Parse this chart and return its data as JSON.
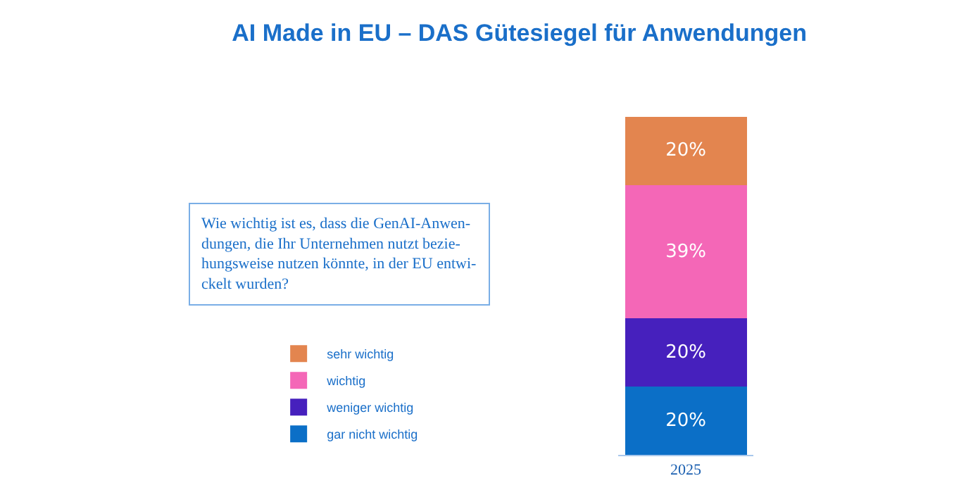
{
  "chart_data": {
    "type": "bar",
    "stacked": true,
    "title": "AI Made in EU – DAS Gütesiegel für Anwendungen",
    "categories": [
      "2025"
    ],
    "series": [
      {
        "name": "gar nicht wichtig",
        "color": "#0b6fc7",
        "values": [
          20
        ],
        "value_labels": [
          "20%"
        ]
      },
      {
        "name": "weniger wichtig",
        "color": "#4620bd",
        "values": [
          20
        ],
        "value_labels": [
          "20%"
        ]
      },
      {
        "name": "wichtig",
        "color": "#f467b7",
        "values": [
          39
        ],
        "value_labels": [
          "39%"
        ]
      },
      {
        "name": "sehr wichtig",
        "color": "#e3854f",
        "values": [
          20
        ],
        "value_labels": [
          "20%"
        ]
      }
    ],
    "annotations": [
      "Wie wichtig ist es, dass die GenAI-Anwen-\ndungen, die Ihr Unternehmen nutzt bezie-\nhungsweise nutzen könnte, in der EU entwi-\nckelt wurden?"
    ],
    "legend": "left"
  }
}
